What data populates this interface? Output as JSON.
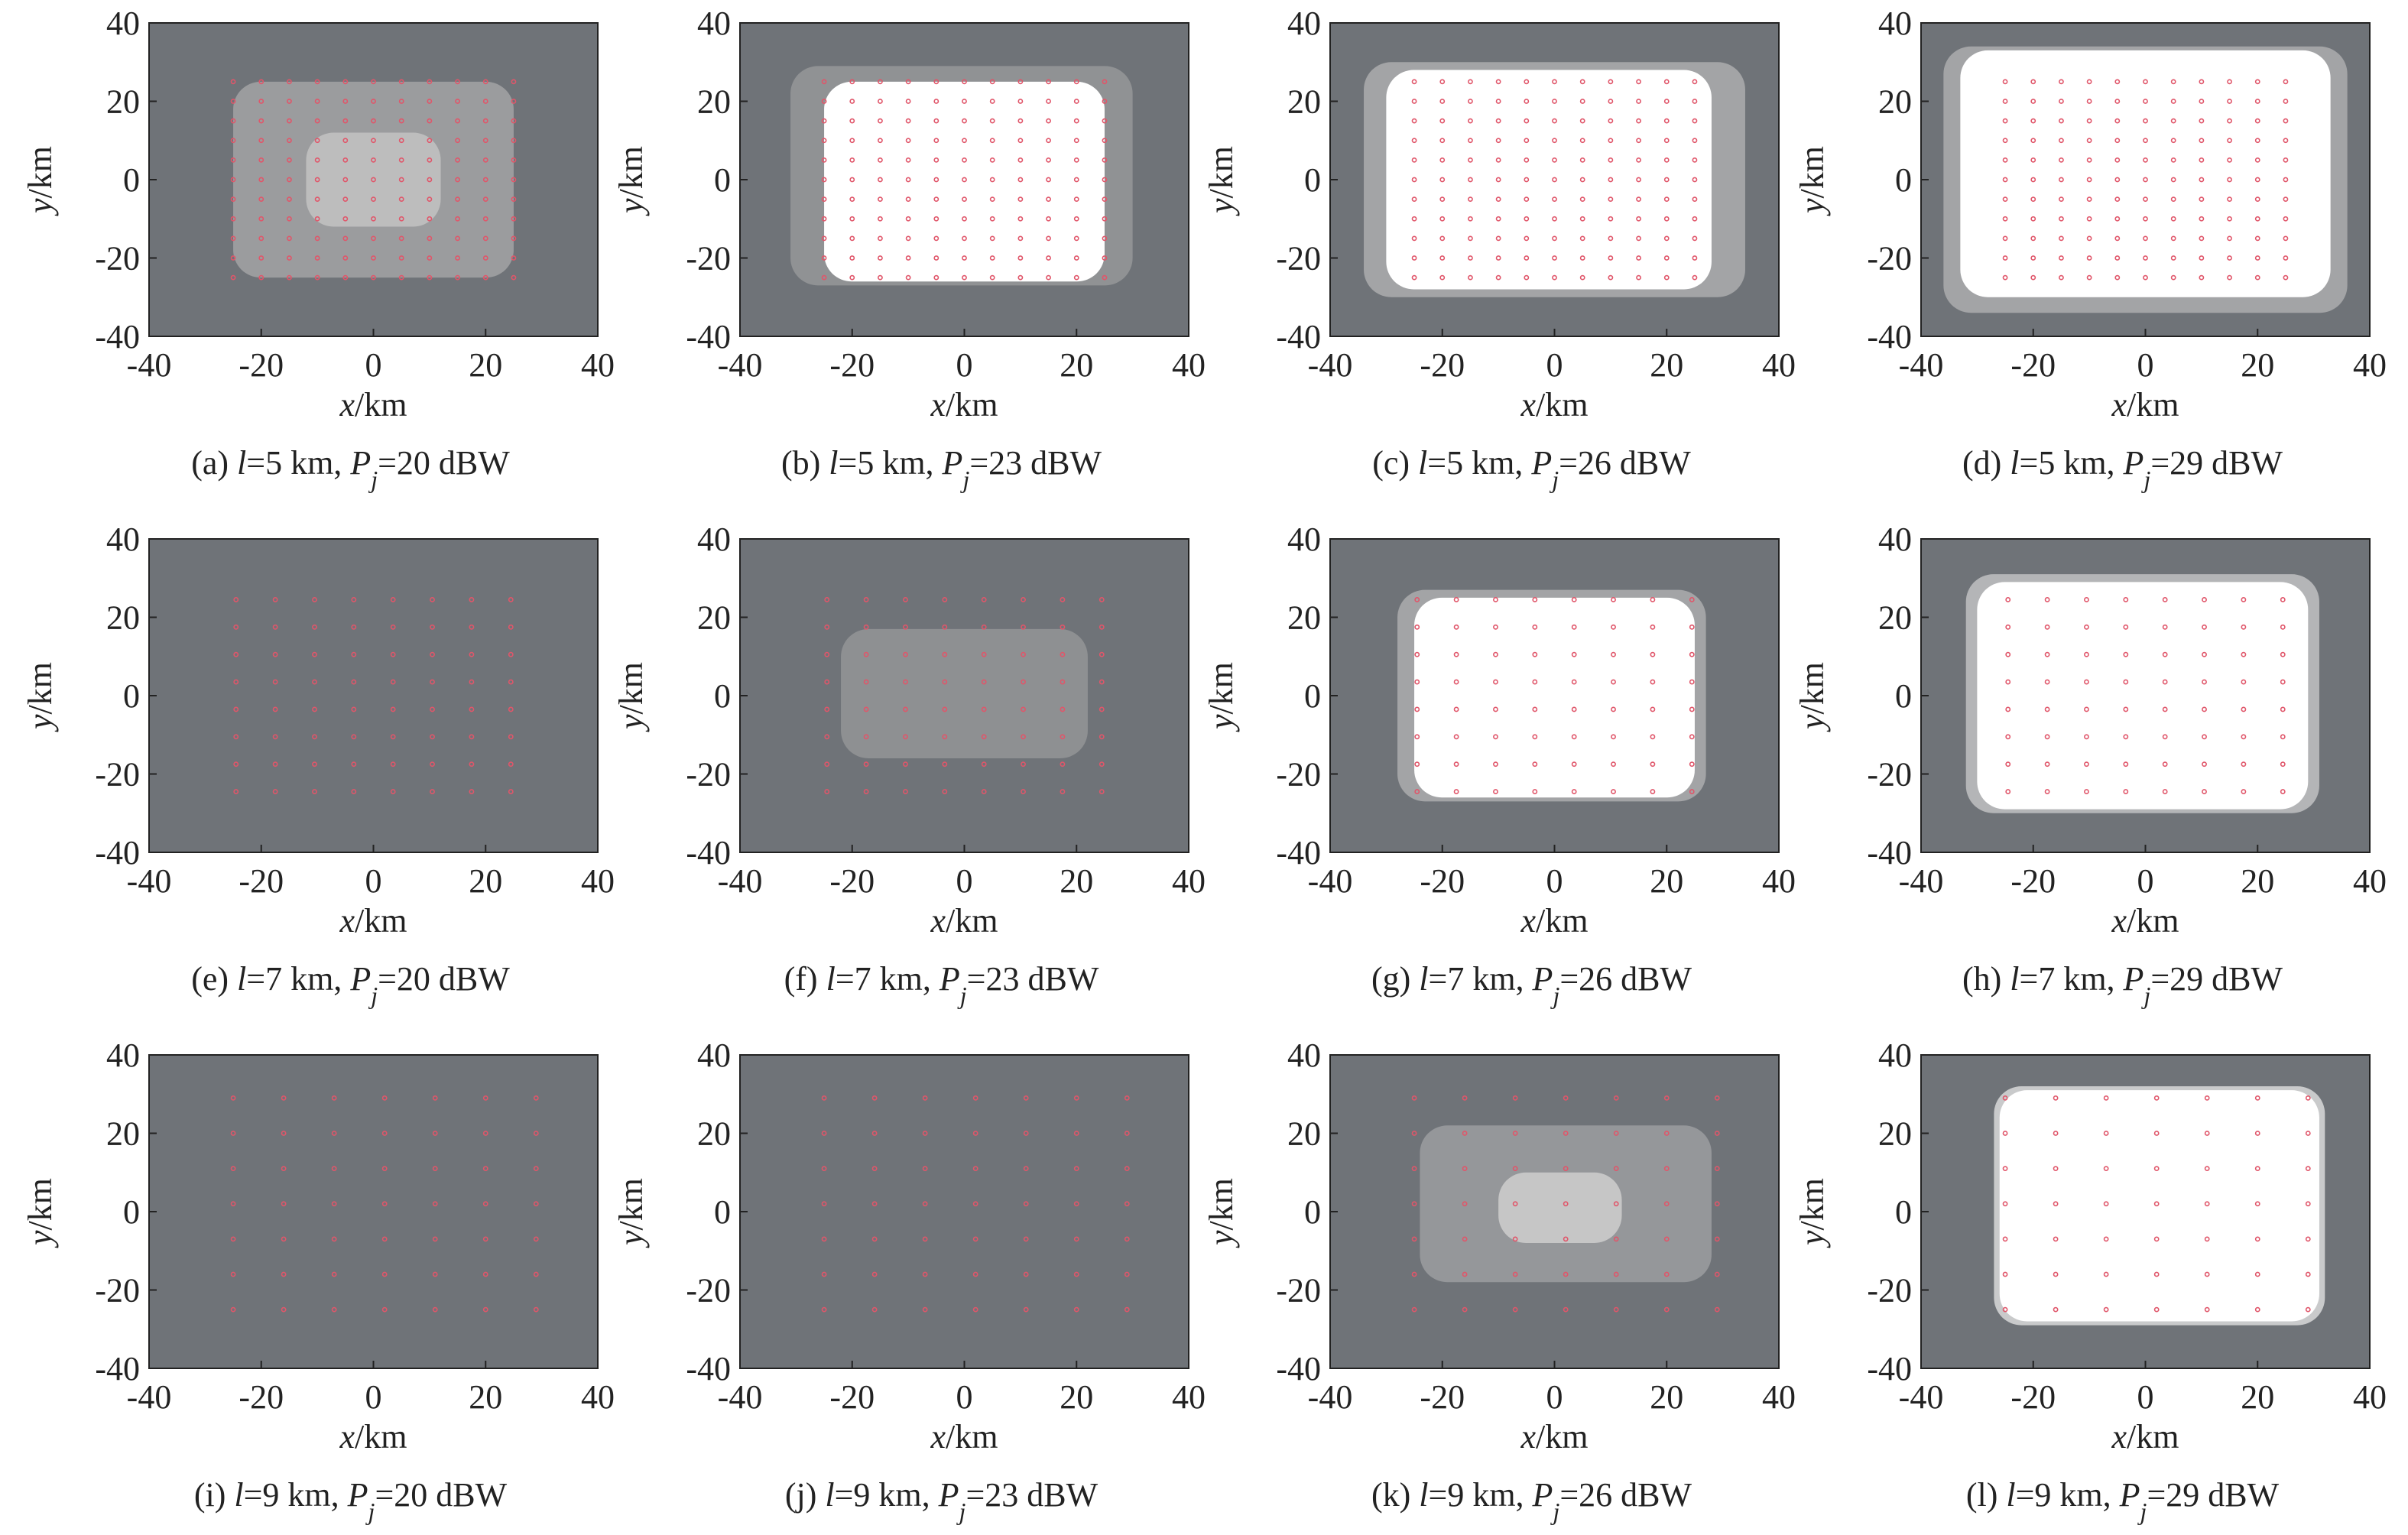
{
  "chart_data": [
    {
      "type": "coverage",
      "xlim": [
        -40,
        40
      ],
      "ylim": [
        -40,
        40
      ],
      "xticks": [
        -40,
        -20,
        0,
        20,
        40
      ],
      "yticks": [
        -40,
        -20,
        0,
        20,
        40
      ],
      "xlabel": [
        "x",
        "/km"
      ],
      "ylabel": [
        "y",
        "/km"
      ],
      "caption": [
        "(a) ",
        "l",
        "=5 km, ",
        "P",
        "j",
        "=20 dBW"
      ],
      "background": "#6f7378",
      "jammer_color": "#e0566a",
      "jammers": {
        "x": [
          -25,
          -20,
          -15,
          -10,
          -5,
          0,
          5,
          10,
          15,
          20,
          25
        ],
        "y": [
          -25,
          -20,
          -15,
          -10,
          -5,
          0,
          5,
          10,
          15,
          20,
          25
        ]
      },
      "zones": [
        {
          "x": [
            -25,
            25
          ],
          "y": [
            -25,
            25
          ],
          "color": "#9b9c9e"
        },
        {
          "x": [
            -12,
            12
          ],
          "y": [
            -12,
            12
          ],
          "color": "#bdbdbd"
        }
      ]
    },
    {
      "type": "coverage",
      "xlim": [
        -40,
        40
      ],
      "ylim": [
        -40,
        40
      ],
      "xticks": [
        -40,
        -20,
        0,
        20,
        40
      ],
      "yticks": [
        -40,
        -20,
        0,
        20,
        40
      ],
      "xlabel": [
        "x",
        "/km"
      ],
      "ylabel": [
        "y",
        "/km"
      ],
      "caption": [
        "(b) ",
        "l",
        "=5 km, ",
        "P",
        "j",
        "=23 dBW"
      ],
      "background": "#6f7378",
      "jammer_color": "#e0566a",
      "jammers": {
        "x": [
          -25,
          -20,
          -15,
          -10,
          -5,
          0,
          5,
          10,
          15,
          20,
          25
        ],
        "y": [
          -25,
          -20,
          -15,
          -10,
          -5,
          0,
          5,
          10,
          15,
          20,
          25
        ]
      },
      "zones": [
        {
          "x": [
            -31,
            30
          ],
          "y": [
            -27,
            29
          ],
          "color": "#909294"
        },
        {
          "x": [
            -25,
            25
          ],
          "y": [
            -26,
            25
          ],
          "color": "#ffffff"
        }
      ]
    },
    {
      "type": "coverage",
      "xlim": [
        -40,
        40
      ],
      "ylim": [
        -40,
        40
      ],
      "xticks": [
        -40,
        -20,
        0,
        20,
        40
      ],
      "yticks": [
        -40,
        -20,
        0,
        20,
        40
      ],
      "xlabel": [
        "x",
        "/km"
      ],
      "ylabel": [
        "y",
        "/km"
      ],
      "caption": [
        "(c) ",
        "l",
        "=5 km, ",
        "P",
        "j",
        "=26 dBW"
      ],
      "background": "#6f7378",
      "jammer_color": "#e0566a",
      "jammers": {
        "x": [
          -25,
          -20,
          -15,
          -10,
          -5,
          0,
          5,
          10,
          15,
          20,
          25
        ],
        "y": [
          -25,
          -20,
          -15,
          -10,
          -5,
          0,
          5,
          10,
          15,
          20,
          25
        ]
      },
      "zones": [
        {
          "x": [
            -34,
            34
          ],
          "y": [
            -30,
            30
          ],
          "color": "#a3a4a6"
        },
        {
          "x": [
            -30,
            28
          ],
          "y": [
            -28,
            28
          ],
          "color": "#ffffff"
        }
      ]
    },
    {
      "type": "coverage",
      "xlim": [
        -40,
        40
      ],
      "ylim": [
        -40,
        40
      ],
      "xticks": [
        -40,
        -20,
        0,
        20,
        40
      ],
      "yticks": [
        -40,
        -20,
        0,
        20,
        40
      ],
      "xlabel": [
        "x",
        "/km"
      ],
      "ylabel": [
        "y",
        "/km"
      ],
      "caption": [
        "(d) ",
        "l",
        "=5 km, ",
        "P",
        "j",
        "=29 dBW"
      ],
      "background": "#6f7378",
      "jammer_color": "#e0566a",
      "jammers": {
        "x": [
          -25,
          -20,
          -15,
          -10,
          -5,
          0,
          5,
          10,
          15,
          20,
          25
        ],
        "y": [
          -25,
          -20,
          -15,
          -10,
          -5,
          0,
          5,
          10,
          15,
          20,
          25
        ]
      },
      "zones": [
        {
          "x": [
            -36,
            36
          ],
          "y": [
            -34,
            34
          ],
          "color": "#a3a4a6"
        },
        {
          "x": [
            -33,
            33
          ],
          "y": [
            -30,
            33
          ],
          "color": "#ffffff"
        }
      ]
    },
    {
      "type": "coverage",
      "xlim": [
        -40,
        40
      ],
      "ylim": [
        -40,
        40
      ],
      "xticks": [
        -40,
        -20,
        0,
        20,
        40
      ],
      "yticks": [
        -40,
        -20,
        0,
        20,
        40
      ],
      "xlabel": [
        "x",
        "/km"
      ],
      "ylabel": [
        "y",
        "/km"
      ],
      "caption": [
        "(e) ",
        "l",
        "=7 km, ",
        "P",
        "j",
        "=20 dBW"
      ],
      "background": "#6f7378",
      "jammer_color": "#e0566a",
      "jammers": {
        "x": [
          -24.5,
          -17.5,
          -10.5,
          -3.5,
          3.5,
          10.5,
          17.5,
          24.5
        ],
        "y": [
          -24.5,
          -17.5,
          -10.5,
          -3.5,
          3.5,
          10.5,
          17.5,
          24.5
        ]
      },
      "zones": []
    },
    {
      "type": "coverage",
      "xlim": [
        -40,
        40
      ],
      "ylim": [
        -40,
        40
      ],
      "xticks": [
        -40,
        -20,
        0,
        20,
        40
      ],
      "yticks": [
        -40,
        -20,
        0,
        20,
        40
      ],
      "xlabel": [
        "x",
        "/km"
      ],
      "ylabel": [
        "y",
        "/km"
      ],
      "caption": [
        "(f) ",
        "l",
        "=7 km, ",
        "P",
        "j",
        "=23 dBW"
      ],
      "background": "#6f7378",
      "jammer_color": "#e0566a",
      "jammers": {
        "x": [
          -24.5,
          -17.5,
          -10.5,
          -3.5,
          3.5,
          10.5,
          17.5,
          24.5
        ],
        "y": [
          -24.5,
          -17.5,
          -10.5,
          -3.5,
          3.5,
          10.5,
          17.5,
          24.5
        ]
      },
      "zones": [
        {
          "x": [
            -22,
            22
          ],
          "y": [
            -16,
            17
          ],
          "color": "#8e9092"
        }
      ]
    },
    {
      "type": "coverage",
      "xlim": [
        -40,
        40
      ],
      "ylim": [
        -40,
        40
      ],
      "xticks": [
        -40,
        -20,
        0,
        20,
        40
      ],
      "yticks": [
        -40,
        -20,
        0,
        20,
        40
      ],
      "xlabel": [
        "x",
        "/km"
      ],
      "ylabel": [
        "y",
        "/km"
      ],
      "caption": [
        "(g) ",
        "l",
        "=7 km, ",
        "P",
        "j",
        "=26 dBW"
      ],
      "background": "#6f7378",
      "jammer_color": "#e0566a",
      "jammers": {
        "x": [
          -24.5,
          -17.5,
          -10.5,
          -3.5,
          3.5,
          10.5,
          17.5,
          24.5
        ],
        "y": [
          -24.5,
          -17.5,
          -10.5,
          -3.5,
          3.5,
          10.5,
          17.5,
          24.5
        ]
      },
      "zones": [
        {
          "x": [
            -28,
            27
          ],
          "y": [
            -27,
            27
          ],
          "color": "#a3a4a6"
        },
        {
          "x": [
            -25,
            25
          ],
          "y": [
            -26,
            25
          ],
          "color": "#ffffff"
        }
      ]
    },
    {
      "type": "coverage",
      "xlim": [
        -40,
        40
      ],
      "ylim": [
        -40,
        40
      ],
      "xticks": [
        -40,
        -20,
        0,
        20,
        40
      ],
      "yticks": [
        -40,
        -20,
        0,
        20,
        40
      ],
      "xlabel": [
        "x",
        "/km"
      ],
      "ylabel": [
        "y",
        "/km"
      ],
      "caption": [
        "(h) ",
        "l",
        "=7 km, ",
        "P",
        "j",
        "=29 dBW"
      ],
      "background": "#6f7378",
      "jammer_color": "#e0566a",
      "jammers": {
        "x": [
          -24.5,
          -17.5,
          -10.5,
          -3.5,
          3.5,
          10.5,
          17.5,
          24.5
        ],
        "y": [
          -24.5,
          -17.5,
          -10.5,
          -3.5,
          3.5,
          10.5,
          17.5,
          24.5
        ]
      },
      "zones": [
        {
          "x": [
            -32,
            31
          ],
          "y": [
            -30,
            31
          ],
          "color": "#b4b5b7"
        },
        {
          "x": [
            -30,
            29
          ],
          "y": [
            -29,
            29
          ],
          "color": "#ffffff"
        }
      ]
    },
    {
      "type": "coverage",
      "xlim": [
        -40,
        40
      ],
      "ylim": [
        -40,
        40
      ],
      "xticks": [
        -40,
        -20,
        0,
        20,
        40
      ],
      "yticks": [
        -40,
        -20,
        0,
        20,
        40
      ],
      "xlabel": [
        "x",
        "/km"
      ],
      "ylabel": [
        "y",
        "/km"
      ],
      "caption": [
        "(i) ",
        "l",
        "=9 km, ",
        "P",
        "j",
        "=20 dBW"
      ],
      "background": "#6f7378",
      "jammer_color": "#e0566a",
      "jammers": {
        "x": [
          -25,
          -16,
          -7,
          2,
          11,
          20,
          29
        ],
        "y": [
          -25,
          -16,
          -7,
          2,
          11,
          20,
          29
        ]
      },
      "zones": []
    },
    {
      "type": "coverage",
      "xlim": [
        -40,
        40
      ],
      "ylim": [
        -40,
        40
      ],
      "xticks": [
        -40,
        -20,
        0,
        20,
        40
      ],
      "yticks": [
        -40,
        -20,
        0,
        20,
        40
      ],
      "xlabel": [
        "x",
        "/km"
      ],
      "ylabel": [
        "y",
        "/km"
      ],
      "caption": [
        "(j) ",
        "l",
        "=9 km, ",
        "P",
        "j",
        "=23 dBW"
      ],
      "background": "#6f7378",
      "jammer_color": "#e0566a",
      "jammers": {
        "x": [
          -25,
          -16,
          -7,
          2,
          11,
          20,
          29
        ],
        "y": [
          -25,
          -16,
          -7,
          2,
          11,
          20,
          29
        ]
      },
      "zones": []
    },
    {
      "type": "coverage",
      "xlim": [
        -40,
        40
      ],
      "ylim": [
        -40,
        40
      ],
      "xticks": [
        -40,
        -20,
        0,
        20,
        40
      ],
      "yticks": [
        -40,
        -20,
        0,
        20,
        40
      ],
      "xlabel": [
        "x",
        "/km"
      ],
      "ylabel": [
        "y",
        "/km"
      ],
      "caption": [
        "(k) ",
        "l",
        "=9 km, ",
        "P",
        "j",
        "=26 dBW"
      ],
      "background": "#6f7378",
      "jammer_color": "#e0566a",
      "jammers": {
        "x": [
          -25,
          -16,
          -7,
          2,
          11,
          20,
          29
        ],
        "y": [
          -25,
          -16,
          -7,
          2,
          11,
          20,
          29
        ]
      },
      "zones": [
        {
          "x": [
            -24,
            28
          ],
          "y": [
            -18,
            22
          ],
          "color": "#95979a"
        },
        {
          "x": [
            -10,
            12
          ],
          "y": [
            -8,
            10
          ],
          "color": "#c6c6c6"
        }
      ]
    },
    {
      "type": "coverage",
      "xlim": [
        -40,
        40
      ],
      "ylim": [
        -40,
        40
      ],
      "xticks": [
        -40,
        -20,
        0,
        20,
        40
      ],
      "yticks": [
        -40,
        -20,
        0,
        20,
        40
      ],
      "xlabel": [
        "x",
        "/km"
      ],
      "ylabel": [
        "y",
        "/km"
      ],
      "caption": [
        "(l) ",
        "l",
        "=9 km, ",
        "P",
        "j",
        "=29 dBW"
      ],
      "background": "#6f7378",
      "jammer_color": "#e0566a",
      "jammers": {
        "x": [
          -25,
          -16,
          -7,
          2,
          11,
          20,
          29
        ],
        "y": [
          -25,
          -16,
          -7,
          2,
          11,
          20,
          29
        ]
      },
      "zones": [
        {
          "x": [
            -27,
            32
          ],
          "y": [
            -29,
            32
          ],
          "color": "#c9cacb"
        },
        {
          "x": [
            -26,
            31
          ],
          "y": [
            -28,
            31
          ],
          "color": "#ffffff"
        }
      ]
    }
  ]
}
